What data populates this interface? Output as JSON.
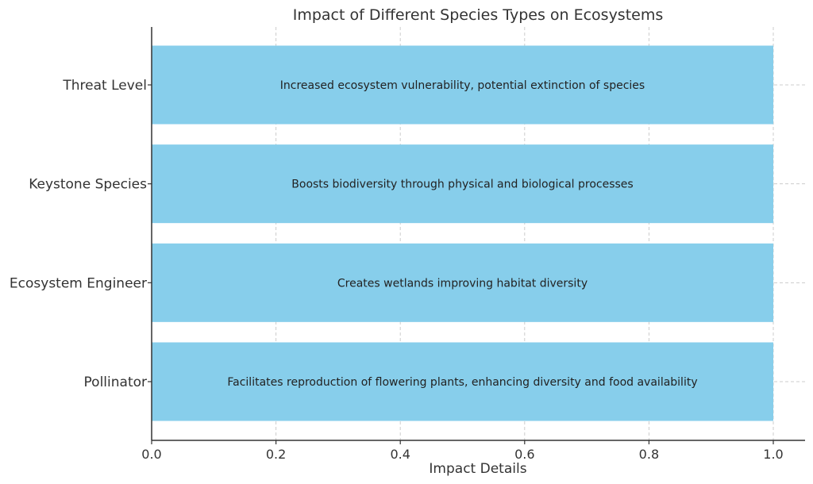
{
  "chart_data": {
    "type": "bar",
    "orientation": "horizontal",
    "title": "Impact of Different Species Types on Ecosystems",
    "xlabel": "Impact Details",
    "ylabel": "",
    "xlim": [
      0,
      1.0
    ],
    "xticks": [
      "0.0",
      "0.2",
      "0.4",
      "0.6",
      "0.8",
      "1.0"
    ],
    "grid": true,
    "bar_color": "#87ceeb",
    "categories": [
      "Pollinator",
      "Ecosystem Engineer",
      "Keystone Species",
      "Threat Level"
    ],
    "values": [
      1,
      1,
      1,
      1
    ],
    "annotations": [
      "Facilitates reproduction of flowering plants, enhancing diversity and food availability",
      "Creates wetlands improving habitat diversity",
      "Boosts biodiversity through physical and biological processes",
      "Increased ecosystem vulnerability, potential extinction of species"
    ]
  }
}
